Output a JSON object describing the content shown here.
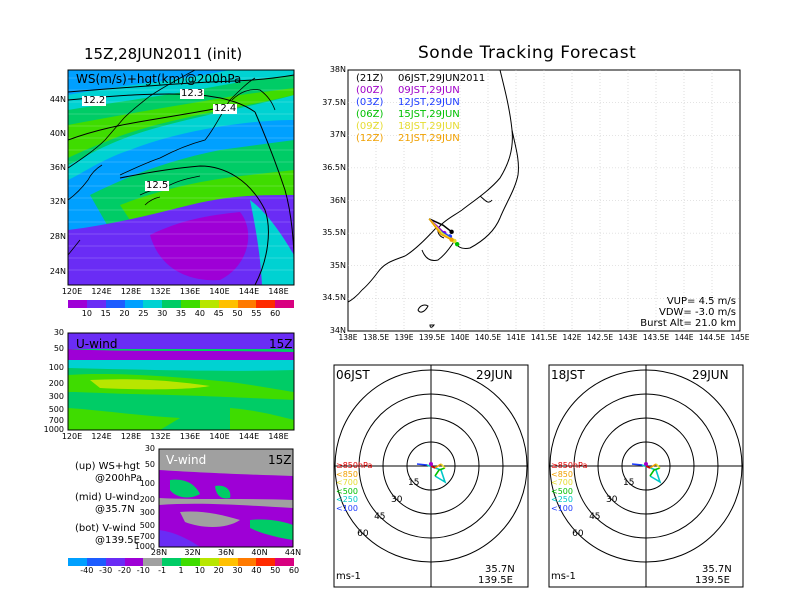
{
  "titles": {
    "left": "15Z,28JUN2011 (init)",
    "right": "Sonde Tracking Forecast"
  },
  "map_top": {
    "label": "WS(m/s)+hgt(km)@200hPa",
    "contour_labels": [
      "12.2",
      "12.3",
      "12.4",
      "12.5"
    ],
    "lon_ticks": [
      "120E",
      "124E",
      "128E",
      "132E",
      "136E",
      "140E",
      "144E",
      "148E"
    ],
    "lat_ticks": [
      "44N",
      "40N",
      "36N",
      "32N",
      "28N",
      "24N"
    ]
  },
  "colorbar_ws": {
    "values": [
      "10",
      "15",
      "20",
      "25",
      "30",
      "35",
      "40",
      "45",
      "50",
      "55",
      "60"
    ],
    "colors": [
      "#9e00d6",
      "#6a2cf5",
      "#1d5cff",
      "#00a0ff",
      "#00d2d2",
      "#00cc66",
      "#3fdc00",
      "#b8e600",
      "#ffc000",
      "#ff7a00",
      "#ff2a00",
      "#d80080"
    ]
  },
  "uwind": {
    "label": "U-wind",
    "time": "15Z",
    "lev_ticks": [
      "30",
      "50",
      "100",
      "200",
      "300",
      "500",
      "700",
      "1000"
    ],
    "lon_ticks": [
      "120E",
      "124E",
      "128E",
      "132E",
      "136E",
      "140E",
      "144E",
      "148E"
    ]
  },
  "vwind": {
    "label": "V-wind",
    "time": "15Z",
    "lev_ticks": [
      "30",
      "50",
      "100",
      "200",
      "300",
      "500",
      "700",
      "1000"
    ],
    "lat_ticks": [
      "28N",
      "32N",
      "36N",
      "40N",
      "44N"
    ]
  },
  "legend_notes": [
    {
      "line1": "(up) WS+hgt",
      "line2": "@200hPa"
    },
    {
      "line1": "(mid) U-wind",
      "line2": "@35.7N"
    },
    {
      "line1": "(bot) V-wind",
      "line2": "@139.5E"
    }
  ],
  "colorbar_wind": {
    "values": [
      "-40",
      "-30",
      "-20",
      "-10",
      "-1",
      "1",
      "10",
      "20",
      "30",
      "40",
      "50",
      "60"
    ],
    "colors": [
      "#00a0ff",
      "#1d5cff",
      "#6a2cf5",
      "#9e00d6",
      "#a0a0a0",
      "#00cc66",
      "#3fdc00",
      "#b8e600",
      "#ffc000",
      "#ff7a00",
      "#ff2a00",
      "#d80080"
    ]
  },
  "track_map": {
    "lat_ticks": [
      "38N",
      "37.5N",
      "37N",
      "36.5N",
      "36N",
      "35.5N",
      "35N",
      "34.5N",
      "34N"
    ],
    "lon_ticks": [
      "138E",
      "138.5E",
      "139E",
      "139.5E",
      "140E",
      "140.5E",
      "141E",
      "141.5E",
      "142E",
      "142.5E",
      "143E",
      "143.5E",
      "144E",
      "144.5E",
      "145E"
    ],
    "launches": [
      {
        "utc": "(21Z)",
        "jst": "06JST,29JUN2011",
        "color": "#000000"
      },
      {
        "utc": "(00Z)",
        "jst": "09JST,29JUN",
        "color": "#a000c8"
      },
      {
        "utc": "(03Z)",
        "jst": "12JST,29JUN",
        "color": "#1e3cff"
      },
      {
        "utc": "(06Z)",
        "jst": "15JST,29JUN",
        "color": "#00c000"
      },
      {
        "utc": "(09Z)",
        "jst": "18JST,29JUN",
        "color": "#e6dc32"
      },
      {
        "utc": "(12Z)",
        "jst": "21JST,29JUN",
        "color": "#f0a000"
      }
    ],
    "params": [
      "VUP= 4.5 m/s",
      "VDW= -3.0 m/s",
      "Burst Alt= 21.0 km"
    ]
  },
  "hodo_left": {
    "time": "06JST",
    "date": "29JUN",
    "ring_labels": [
      "15",
      "30",
      "45",
      "60"
    ],
    "units": "ms-1",
    "lat": "35.7N",
    "lon": "139.5E",
    "level_legend": [
      {
        "text": "≥850hPa",
        "color": "#e00000"
      },
      {
        "text": "<850",
        "color": "#f0a000"
      },
      {
        "text": "<700",
        "color": "#e6dc32"
      },
      {
        "text": "<500",
        "color": "#00c000"
      },
      {
        "text": "<250",
        "color": "#00c8c8"
      },
      {
        "text": "<100",
        "color": "#1e3cff"
      }
    ]
  },
  "hodo_right": {
    "time": "18JST",
    "date": "29JUN",
    "ring_labels": [
      "15",
      "30",
      "45",
      "60"
    ],
    "units": "ms-1",
    "lat": "35.7N",
    "lon": "139.5E"
  },
  "chart_data": [
    {
      "type": "heatmap",
      "title": "WS(m/s)+hgt(km)@200hPa",
      "xlabel": "",
      "ylabel": "",
      "x_range": [
        "120E",
        "148E"
      ],
      "y_range": [
        "22N",
        "47N"
      ],
      "contour_levels_km": [
        12.2,
        12.3,
        12.4,
        12.5
      ],
      "colorbar": [
        10,
        15,
        20,
        25,
        30,
        35,
        40,
        45,
        50,
        55,
        60
      ]
    },
    {
      "type": "heatmap",
      "title": "U-wind",
      "x_range": [
        "120E",
        "148E"
      ],
      "y_levels_hPa": [
        30,
        50,
        100,
        200,
        300,
        500,
        700,
        1000
      ],
      "colorbar": [
        -40,
        -30,
        -20,
        -10,
        -1,
        1,
        10,
        20,
        30,
        40,
        50,
        60
      ]
    },
    {
      "type": "heatmap",
      "title": "V-wind",
      "x_range": [
        "28N",
        "44N"
      ],
      "y_levels_hPa": [
        30,
        50,
        100,
        200,
        300,
        500,
        700,
        1000
      ],
      "colorbar": [
        -40,
        -30,
        -20,
        -10,
        -1,
        1,
        10,
        20,
        30,
        40,
        50,
        60
      ]
    },
    {
      "type": "line",
      "title": "Sonde Tracking Forecast",
      "xlim": [
        138,
        145
      ],
      "ylim": [
        34,
        38
      ],
      "series": [
        {
          "name": "(21Z)",
          "points": [
            [
              139.45,
              35.72
            ],
            [
              139.7,
              35.62
            ],
            [
              139.85,
              35.52
            ]
          ]
        },
        {
          "name": "(00Z)",
          "points": [
            [
              139.45,
              35.72
            ],
            [
              139.6,
              35.6
            ],
            [
              139.72,
              35.5
            ]
          ]
        },
        {
          "name": "(03Z)",
          "points": [
            [
              139.45,
              35.72
            ],
            [
              139.62,
              35.55
            ],
            [
              139.82,
              35.45
            ]
          ]
        },
        {
          "name": "(06Z)",
          "points": [
            [
              139.45,
              35.72
            ],
            [
              139.65,
              35.52
            ],
            [
              139.95,
              35.33
            ]
          ]
        },
        {
          "name": "(09Z)",
          "points": [
            [
              139.45,
              35.72
            ],
            [
              139.68,
              35.5
            ],
            [
              139.9,
              35.38
            ]
          ]
        },
        {
          "name": "(12Z)",
          "points": [
            [
              139.45,
              35.72
            ],
            [
              139.66,
              35.48
            ],
            [
              139.85,
              35.4
            ]
          ]
        }
      ]
    }
  ]
}
